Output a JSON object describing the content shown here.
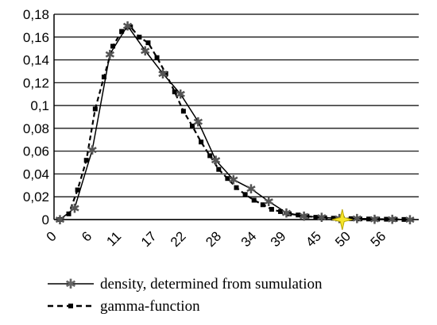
{
  "chart_data": {
    "type": "line",
    "title": "",
    "xlabel": "",
    "ylabel": "",
    "ylim": [
      0,
      0.18
    ],
    "y_ticks": [
      "0",
      "0,02",
      "0,04",
      "0,06",
      "0,08",
      "0,1",
      "0,12",
      "0,14",
      "0,16",
      "0,18"
    ],
    "x_ticks": [
      "0",
      "6",
      "11",
      "17",
      "22",
      "28",
      "34",
      "39",
      "45",
      "50",
      "56"
    ],
    "grid": "horizontal",
    "legend_position": "bottom",
    "series": [
      {
        "name": "density, determined from sumulation",
        "style": "solid-asterisk",
        "color": "#000000",
        "x": [
          1,
          3.5,
          6.5,
          9.5,
          12.5,
          15.5,
          18.5,
          21.5,
          24.5,
          27.5,
          30.5,
          33.5,
          36.5,
          39.5,
          42.5,
          45.5,
          48.5,
          51.5,
          54.5,
          57.5,
          60.5
        ],
        "values": [
          0.0,
          0.01,
          0.061,
          0.145,
          0.17,
          0.148,
          0.128,
          0.11,
          0.086,
          0.052,
          0.035,
          0.027,
          0.016,
          0.006,
          0.003,
          0.002,
          0.001,
          0.001,
          0.0005,
          0.0003,
          0.0
        ]
      },
      {
        "name": "gamma-function",
        "style": "dashed-square",
        "color": "#000000",
        "x": [
          1,
          2.5,
          4,
          5.5,
          7,
          8.5,
          10,
          11.5,
          13,
          14.5,
          16,
          17.5,
          19,
          20.5,
          22,
          23.5,
          25,
          26.5,
          28,
          29.5,
          31,
          32.5,
          34,
          35.5,
          37,
          38.5,
          40,
          41.5,
          43,
          44.5,
          46,
          47.5,
          49,
          50.5,
          52,
          53.5,
          55,
          56.5,
          58,
          59.5
        ],
        "values": [
          0.0,
          0.005,
          0.026,
          0.052,
          0.097,
          0.125,
          0.152,
          0.165,
          0.169,
          0.16,
          0.155,
          0.142,
          0.128,
          0.112,
          0.095,
          0.082,
          0.068,
          0.056,
          0.044,
          0.036,
          0.028,
          0.022,
          0.017,
          0.013,
          0.009,
          0.007,
          0.005,
          0.004,
          0.003,
          0.002,
          0.0016,
          0.0012,
          0.001,
          0.0008,
          0.0006,
          0.0005,
          0.0004,
          0.0003,
          0.0002,
          0.0001
        ]
      }
    ],
    "marker_highlight": {
      "name": "star-marker",
      "x": 49,
      "y": 0.0,
      "color": "#f5e52a"
    }
  }
}
